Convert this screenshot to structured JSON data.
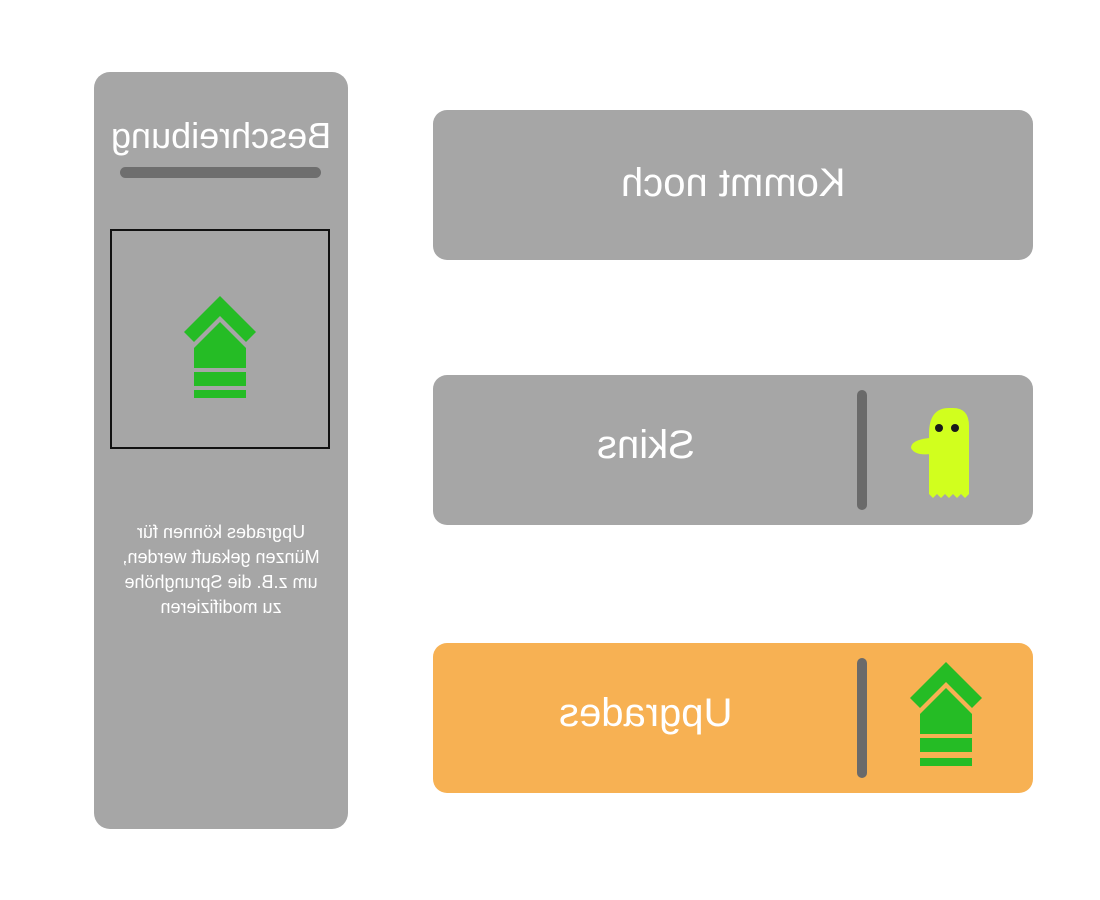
{
  "side_panel": {
    "title": "Beschreibung",
    "preview_icon": "upgrade-arrow-icon",
    "description": "Upgrades können für Münzen gekauft werden, um z.B. die Sprunghöhe zu modifizieren"
  },
  "menu": {
    "items": [
      {
        "label": "Kommt noch",
        "icon": null,
        "selected": false
      },
      {
        "label": "Skins",
        "icon": "ghost-skin-icon",
        "selected": false
      },
      {
        "label": "Upgrades",
        "icon": "upgrade-arrow-icon",
        "selected": true
      }
    ]
  },
  "colors": {
    "panel": "#a6a6a6",
    "selected": "#f7b153",
    "separator": "#6a6a6a",
    "upgrade_green": "#25bc25",
    "ghost_yellow": "#d1ff1e",
    "text": "#ffffff"
  }
}
